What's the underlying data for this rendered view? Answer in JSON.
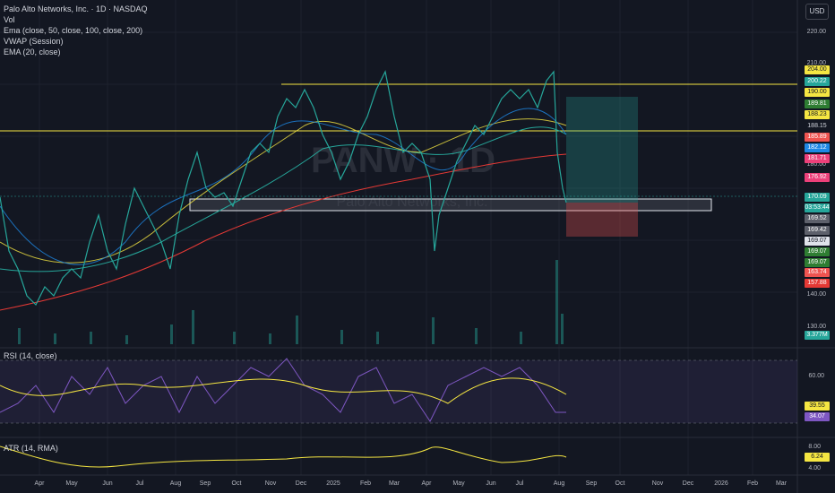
{
  "legend": {
    "symbol": "Palo Alto Networks, Inc. · 1D · NASDAQ",
    "vol": "Vol",
    "ema_main": "Ema (close, 50, close, 100, close, 200)",
    "vwap": "VWAP (Session)",
    "ema20": "EMA (20, close)"
  },
  "currency_button": "USD",
  "price_axis": {
    "ticks": [
      "220.00",
      "210.00",
      "180.00",
      "140.00",
      "130.00"
    ],
    "badges": [
      {
        "label": "204.00",
        "bg": "#f5e642",
        "fg": "#131722"
      },
      {
        "label": "200.22",
        "bg": "#26a69a",
        "fg": "#ffffff"
      },
      {
        "label": "190.00",
        "bg": "#f5e642",
        "fg": "#131722"
      },
      {
        "label": "189.81",
        "bg": "#2e7d32",
        "fg": "#ffffff"
      },
      {
        "label": "188.23",
        "bg": "#f5e642",
        "fg": "#131722"
      },
      {
        "label": "188.15",
        "bg": "#131722",
        "fg": "#d1d4dc"
      },
      {
        "label": "185.89",
        "bg": "#ef5350",
        "fg": "#ffffff"
      },
      {
        "label": "182.12",
        "bg": "#1e88e5",
        "fg": "#ffffff"
      },
      {
        "label": "181.71",
        "bg": "#ec407a",
        "fg": "#ffffff"
      },
      {
        "label": "176.92",
        "bg": "#ec407a",
        "fg": "#ffffff"
      },
      {
        "label": "170.09",
        "bg": "#26a69a",
        "fg": "#ffffff"
      },
      {
        "label": "03:53:44",
        "bg": "#26a69a",
        "fg": "#ffffff"
      },
      {
        "label": "169.52",
        "bg": "#5d606b",
        "fg": "#ffffff"
      },
      {
        "label": "169.42",
        "bg": "#5d606b",
        "fg": "#ffffff"
      },
      {
        "label": "169.07",
        "bg": "#e0e3eb",
        "fg": "#131722"
      },
      {
        "label": "169.07",
        "bg": "#2e7d32",
        "fg": "#ffffff"
      },
      {
        "label": "169.07",
        "bg": "#2e7d32",
        "fg": "#ffffff"
      },
      {
        "label": "163.74",
        "bg": "#ef5350",
        "fg": "#ffffff"
      },
      {
        "label": "157.88",
        "bg": "#e53935",
        "fg": "#ffffff"
      }
    ],
    "volume_badge": "3.377M"
  },
  "watermark": "PANW · 1D",
  "watermark_sub": "Palo Alto Networks, Inc.",
  "rsi": {
    "label": "RSI (14, close)",
    "tick": "60.00",
    "value": "39.55",
    "value2": "34.07"
  },
  "atr": {
    "label": "ATR (14, RMA)",
    "tick_high": "8.00",
    "value": "6.24",
    "tick_low": "4.00"
  },
  "time_axis": [
    "Apr",
    "May",
    "Jun",
    "Jul",
    "Aug",
    "Sep",
    "Oct",
    "Nov",
    "Dec",
    "2025",
    "Feb",
    "Mar",
    "Apr",
    "May",
    "Jun",
    "Jul",
    "Aug",
    "Sep",
    "Oct",
    "Nov",
    "Dec",
    "2026",
    "Feb",
    "Mar"
  ],
  "chart_data": {
    "type": "line",
    "title": "Palo Alto Networks, Inc. · 1D · NASDAQ",
    "x": [
      "Apr",
      "May",
      "Jun",
      "Jul",
      "Aug",
      "Sep",
      "Oct",
      "Nov",
      "Dec",
      "2025",
      "Feb",
      "Mar",
      "Apr",
      "May",
      "Jun",
      "Jul",
      "Aug"
    ],
    "series": [
      {
        "name": "close",
        "values": [
          140,
          146,
          152,
          166,
          158,
          171,
          174,
          192,
          196,
          188,
          199,
          182,
          160,
          176,
          188,
          196,
          170
        ]
      }
    ],
    "levels": [
      204.0,
      190.0,
      188.23
    ],
    "ylim": [
      130,
      225
    ]
  }
}
